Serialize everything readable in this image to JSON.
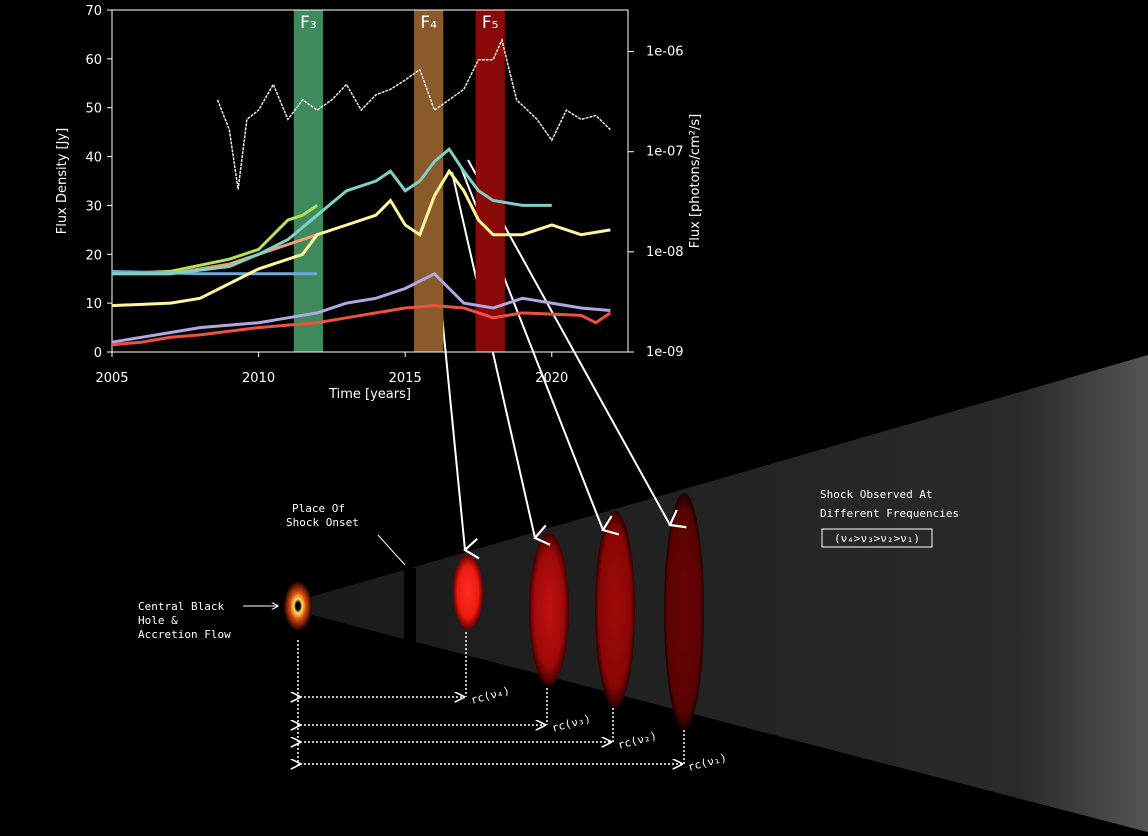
{
  "chart_data": {
    "type": "line",
    "xlabel": "Time [years]",
    "ylabel": "Flux Density [Jy]",
    "y2label": "Flux [photons/cm²/s]",
    "xlim": [
      2005,
      2022.6
    ],
    "xticks": [
      2005,
      2010,
      2015,
      2020
    ],
    "ylim": [
      0,
      70
    ],
    "yticks": [
      0,
      10,
      20,
      30,
      40,
      50,
      60,
      70
    ],
    "y2lim": [
      1e-09,
      2.6e-06
    ],
    "y2scale": "log",
    "y2ticks": [
      {
        "value": 1e-09,
        "label": "1e-09"
      },
      {
        "value": 1e-08,
        "label": "1e-08"
      },
      {
        "value": 1e-07,
        "label": "1e-07"
      },
      {
        "value": 1e-06,
        "label": "1e-06"
      }
    ],
    "bands": [
      {
        "label": "F₃",
        "start": 2011.2,
        "end": 2012.2,
        "color": "#3f8a5c"
      },
      {
        "label": "F₄",
        "start": 2015.3,
        "end": 2016.3,
        "color": "#8a5a2a"
      },
      {
        "label": "F₅",
        "start": 2017.4,
        "end": 2018.4,
        "color": "#8a0a0a"
      }
    ],
    "series": [
      {
        "color": "#e8e8e8",
        "axis": "y2",
        "x": [
          2008.6,
          2009,
          2009.3,
          2009.6,
          2010,
          2010.5,
          2011,
          2011.5,
          2012,
          2012.5,
          2013,
          2013.5,
          2014,
          2014.5,
          2015,
          2015.5,
          2016,
          2016.5,
          2017,
          2017.5,
          2018,
          2018.3,
          2018.8,
          2019.5,
          2020,
          2020.5,
          2021,
          2021.5,
          2022
        ],
        "values": [
          3.3e-07,
          1.66e-07,
          4.2e-08,
          2.1e-07,
          2.6e-07,
          4.7e-07,
          2.1e-07,
          3.3e-07,
          2.6e-07,
          3.3e-07,
          4.7e-07,
          2.6e-07,
          3.7e-07,
          4.2e-07,
          5.2e-07,
          6.6e-07,
          2.6e-07,
          3.3e-07,
          4.2e-07,
          8.3e-07,
          8.3e-07,
          1.3e-06,
          3.3e-07,
          2.1e-07,
          1.3e-07,
          2.6e-07,
          2.1e-07,
          2.3e-07,
          1.66e-07
        ]
      },
      {
        "color": "#b4e05a",
        "x": [
          2005,
          2007,
          2009,
          2010,
          2011,
          2011.5,
          2012
        ],
        "values": [
          16,
          16.5,
          19,
          21,
          27,
          28,
          30
        ]
      },
      {
        "color": "#f0a070",
        "x": [
          2005,
          2007,
          2009,
          2010,
          2011,
          2012
        ],
        "values": [
          16,
          16,
          18,
          20,
          22,
          24
        ]
      },
      {
        "color": "#70a8d8",
        "x": [
          2005,
          2008,
          2010,
          2012
        ],
        "values": [
          16.5,
          16,
          16,
          16
        ]
      },
      {
        "color": "#80d0c8",
        "x": [
          2005,
          2007,
          2009,
          2010,
          2011,
          2012,
          2013,
          2014,
          2014.5,
          2015,
          2015.5,
          2016,
          2016.5,
          2017,
          2017.5,
          2018,
          2019,
          2020
        ],
        "values": [
          16,
          16,
          17.5,
          20,
          23,
          28,
          33,
          35,
          37,
          33,
          35,
          39,
          41.5,
          37,
          33,
          31,
          30,
          30
        ]
      },
      {
        "color": "#fff59a",
        "x": [
          2005,
          2007,
          2008,
          2009,
          2010,
          2011,
          2011.5,
          2012,
          2013,
          2014,
          2014.5,
          2015,
          2015.5,
          2016,
          2016.5,
          2017,
          2017.5,
          2018,
          2019,
          2020,
          2021,
          2022
        ],
        "values": [
          9.5,
          10,
          11,
          14,
          17,
          19,
          20,
          24,
          26,
          28,
          31,
          26,
          24,
          32,
          37,
          33,
          27,
          24,
          24,
          26,
          24,
          25
        ]
      },
      {
        "color": "#b0a8e0",
        "x": [
          2005,
          2006,
          2007,
          2008,
          2009,
          2010,
          2011,
          2012,
          2013,
          2014,
          2015,
          2016,
          2016.5,
          2017,
          2018,
          2019,
          2020,
          2021,
          2022
        ],
        "values": [
          2,
          3,
          4,
          5,
          5.5,
          6,
          7,
          8,
          10,
          11,
          13,
          16,
          13,
          10,
          9,
          11,
          10,
          9,
          8.5
        ]
      },
      {
        "color": "#f05040",
        "x": [
          2005,
          2006,
          2007,
          2008,
          2010,
          2011,
          2012,
          2013,
          2014,
          2015,
          2016,
          2017,
          2018,
          2019,
          2021,
          2021.5,
          2022
        ],
        "values": [
          1.5,
          2,
          3,
          3.5,
          5,
          5.5,
          6,
          7,
          8,
          9,
          9.5,
          9,
          7,
          8,
          7.5,
          6,
          8
        ]
      }
    ]
  },
  "diagram": {
    "onset_label": [
      "Place Of",
      "Shock Onset"
    ],
    "core_label": [
      "Central Black",
      "Hole &",
      "Accretion Flow"
    ],
    "observed_label": [
      "Shock Observed At",
      "Different Frequencies"
    ],
    "ordering": "(ν₄>ν₃>ν₂>ν₁)",
    "radii": [
      "rc(ν₄)",
      "rc(ν₃)",
      "rc(ν₂)",
      "rc(ν₁)"
    ]
  }
}
